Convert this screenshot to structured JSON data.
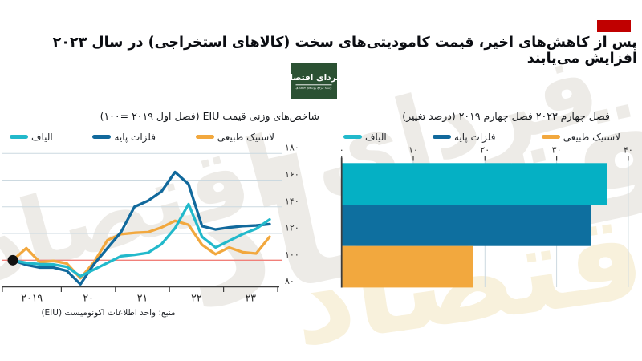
{
  "page": {
    "bg": "#ffffff"
  },
  "header": {
    "red_mark_color": "#c00000",
    "title": "پس از کاهش‌های اخیر، قیمت کامودیتی‌های سخت (کالاهای استخراجی) در سال ۲۰۲۳ افزایش می‌یابند"
  },
  "brand_logo": {
    "bg": "#2b5133",
    "line1": "فردای اقتصاد",
    "line2": "رسانه مرجع روندهای اقتصادی"
  },
  "watermark": {
    "text": "فردای اقتصاد",
    "gray": "#edebe7",
    "cream": "#f8f1dc"
  },
  "legend": {
    "items": [
      {
        "label": "لاستیک طبیعی",
        "color": "#f2a83e"
      },
      {
        "label": "فلزات پایه",
        "color": "#11699c"
      },
      {
        "label": "الیاف",
        "color": "#22b9cb"
      }
    ]
  },
  "source": "منبع: واحد اطلاعات اکونومیست (EIU)",
  "chart_data": [
    {
      "type": "line",
      "title": "شاخص‌های وزنی قیمت EIU (فصل اول ۲۰۱۹ =۱۰۰)",
      "x_range": [
        "2019Q1",
        "2023Q4"
      ],
      "x_tick_labels": [
        "۲۰۱۹",
        "۲۰",
        "۲۱",
        "۲۲",
        "۲۳"
      ],
      "y_ticks": [
        {
          "v": 180,
          "label": "۱۸۰"
        },
        {
          "v": 160,
          "label": "۱۶۰"
        },
        {
          "v": 140,
          "label": "۱۴۰"
        },
        {
          "v": 120,
          "label": "۱۲۰"
        },
        {
          "v": 100,
          "label": "۱۰۰"
        },
        {
          "v": 80,
          "label": "۸۰"
        }
      ],
      "ylim": [
        80,
        183
      ],
      "grid": true,
      "baseline": {
        "v": 100,
        "color": "#f1807a"
      },
      "start_marker": {
        "x_index": 0,
        "value": 100,
        "color": "#101010"
      },
      "series": [
        {
          "name": "لاستیک طبیعی",
          "color": "#f2a83e",
          "values": [
            100,
            109,
            98.5,
            99.5,
            97.5,
            86.5,
            98.5,
            115,
            119.5,
            120.5,
            121,
            124.5,
            129.5,
            126.5,
            111.5,
            104.5,
            109.5,
            106,
            105,
            117.5
          ]
        },
        {
          "name": "فلزات پایه",
          "color": "#11699c",
          "values": [
            100,
            96.5,
            94.5,
            94.5,
            92,
            82,
            97,
            109,
            121,
            140,
            144.5,
            151.5,
            166,
            157,
            125.5,
            123,
            124.5,
            125.5,
            126,
            127
          ]
        },
        {
          "name": "الیاف",
          "color": "#22b9cb",
          "values": [
            100,
            98,
            97,
            96.8,
            95,
            88,
            93,
            98,
            103,
            104,
            105.5,
            112,
            124,
            142,
            117.5,
            109.5,
            114.5,
            119.5,
            123.5,
            130.5
          ]
        }
      ],
      "colors": {
        "grid": "#ccd9e0",
        "axis": "#3d3d3d",
        "tick_text": "#333333",
        "year_text": "#1e1e1e"
      }
    },
    {
      "type": "bar",
      "orientation": "horizontal",
      "title": "فصل چهارم ۲۰۲۳ فصل چهارم ۲۰۱۹ (درصد تغییر)",
      "categories": [
        "الیاف",
        "فلزات پایه",
        "لاستیک طبیعی"
      ],
      "values": [
        37,
        34.7,
        18.3
      ],
      "bar_colors": [
        "#05b0c4",
        "#0e6f9f",
        "#f2a83e"
      ],
      "x_tick_values": [
        0,
        10,
        20,
        30,
        40
      ],
      "x_tick_labels": [
        "۰",
        "۱۰",
        "۲۰",
        "۳۰",
        "۴۰"
      ],
      "xlim": [
        0,
        41.5
      ],
      "grid": true,
      "colors": {
        "grid": "#ccd9e0",
        "axis": "#3d3d3d",
        "tick_text": "#333333"
      }
    }
  ]
}
